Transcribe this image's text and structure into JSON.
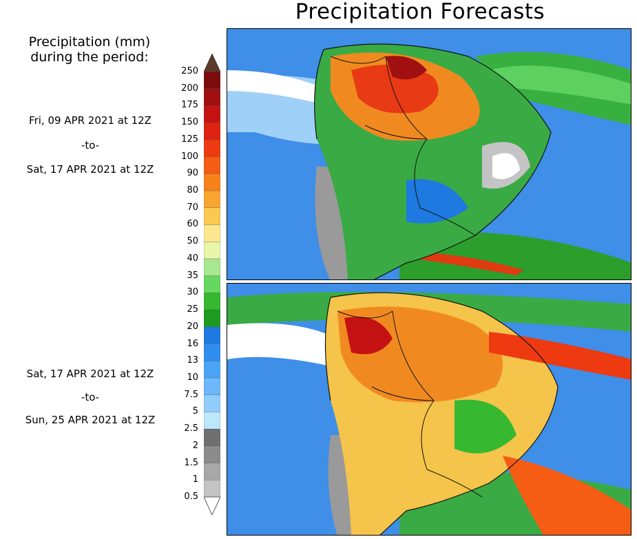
{
  "title": "Precipitation Forecasts",
  "legend": {
    "heading_line1": "Precipitation (mm)",
    "heading_line2": "during the period:",
    "ticks": [
      "250",
      "200",
      "175",
      "150",
      "125",
      "100",
      "90",
      "80",
      "70",
      "60",
      "50",
      "40",
      "35",
      "30",
      "25",
      "20",
      "16",
      "13",
      "10",
      "7.5",
      "5",
      "2.5",
      "2",
      "1.5",
      "1",
      "0.5"
    ],
    "colors": [
      "#7a0c0c",
      "#a01010",
      "#c41212",
      "#dd2210",
      "#ee3a10",
      "#f55c14",
      "#f7821a",
      "#f9a630",
      "#fbc850",
      "#fde890",
      "#e9f6a8",
      "#a8e890",
      "#66d860",
      "#36b830",
      "#1e9a20",
      "#1e7ae0",
      "#2e8ef0",
      "#4aa4f6",
      "#6cb8fa",
      "#92ccfc",
      "#bce8fc",
      "#707070",
      "#8c8c8c",
      "#a8a8a8",
      "#c4c4c4"
    ],
    "top_arrow_color": "#5a3a2a",
    "bottom_arrow_color": "#ffffff"
  },
  "periods": [
    {
      "start": "Fri, 09 APR 2021 at 12Z",
      "sep": "-to-",
      "end": "Sat, 17 APR 2021 at 12Z"
    },
    {
      "start": "Sat, 17 APR 2021 at 12Z",
      "sep": "-to-",
      "end": "Sun, 25 APR 2021 at 12Z"
    }
  ]
}
